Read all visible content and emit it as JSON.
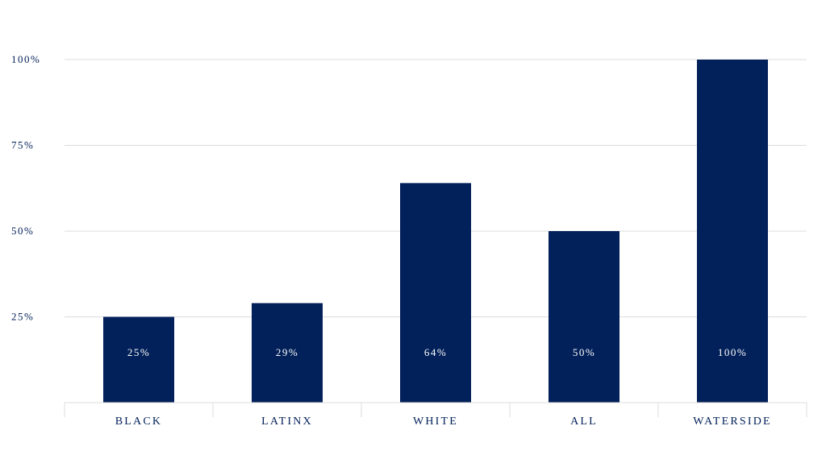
{
  "chart_data": {
    "type": "bar",
    "title": "",
    "xlabel": "",
    "ylabel": "",
    "categories": [
      "BLACK",
      "LATINX",
      "WHITE",
      "ALL",
      "WATERSIDE"
    ],
    "values": [
      25,
      29,
      64,
      50,
      100
    ],
    "value_labels": [
      "25%",
      "29%",
      "64%",
      "50%",
      "100%"
    ],
    "ylim": [
      0,
      100
    ],
    "y_ticks": [
      25,
      50,
      75,
      100
    ],
    "y_tick_labels": [
      "25%",
      "50%",
      "75%",
      "100%"
    ],
    "grid": true,
    "legend": "none",
    "colors": {
      "bar": "#022059",
      "text": "#022059",
      "bar_label": "#ffffff",
      "grid": "#dcdcdc"
    }
  }
}
